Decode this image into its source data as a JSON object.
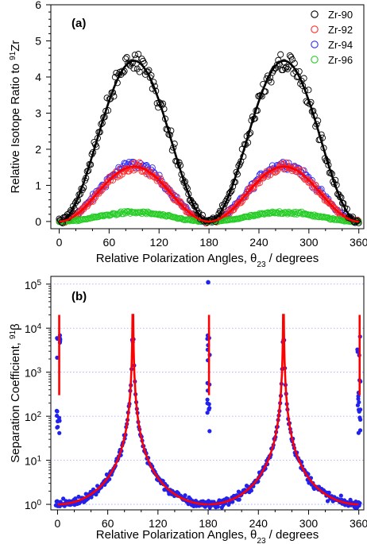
{
  "chart_data": [
    {
      "type": "scatter",
      "panel_label": "(a)",
      "xlabel": "Relative Polarization Angles, θ23 / degrees",
      "ylabel": "Relative Isotope Ratio to 91Zr",
      "xlim": [
        -10,
        366
      ],
      "ylim": [
        -0.2,
        6
      ],
      "xticks": [
        0,
        60,
        120,
        180,
        240,
        300,
        360
      ],
      "yticks": [
        0,
        1,
        2,
        3,
        4,
        5,
        6
      ],
      "grid": false,
      "legend_position": "top-right",
      "marker": "open-circle",
      "series": [
        {
          "name": "Zr-90",
          "color": "#000000",
          "peak": 4.45,
          "scatter": 0.28
        },
        {
          "name": "Zr-92",
          "color": "#ff2a2a",
          "peak": 1.5,
          "scatter": 0.12
        },
        {
          "name": "Zr-94",
          "color": "#2a2aff",
          "peak": 1.58,
          "scatter": 0.12
        },
        {
          "name": "Zr-96",
          "color": "#22cc22",
          "peak": 0.25,
          "scatter": 0.04
        }
      ],
      "fit_curves": [
        {
          "name": "Zr-90 fit",
          "color": "#000000",
          "peak": 4.45
        },
        {
          "name": "Zr-92 fit",
          "color": "#ff0000",
          "peak": 1.52
        }
      ],
      "model": "y = peak · sin²(θ23)"
    },
    {
      "type": "scatter",
      "panel_label": "(b)",
      "xlabel": "Relative Polarization Angles, θ23 / degrees",
      "ylabel": "Separation Coefficient, 91β",
      "yscale": "log",
      "xlim": [
        -8,
        366
      ],
      "ylim": [
        0.75,
        150000
      ],
      "xticks": [
        0,
        60,
        120,
        180,
        240,
        300,
        360
      ],
      "ytick_labels": [
        "10^0",
        "10^1",
        "10^2",
        "10^3",
        "10^4",
        "10^5"
      ],
      "grid": true,
      "grid_style": "dotted horizontal at decades",
      "marker": "filled-circle",
      "point_color": "#2222ee",
      "fit_color": "#ff0000",
      "model": "β ≈ 1 / cos²(θ23)",
      "outlier": {
        "x": 180,
        "y": 110000
      },
      "fit_peaks": [
        {
          "x": 2,
          "y": 20000
        },
        {
          "x": 181,
          "y": 20000
        },
        {
          "x": 361,
          "y": 20000
        }
      ]
    }
  ]
}
